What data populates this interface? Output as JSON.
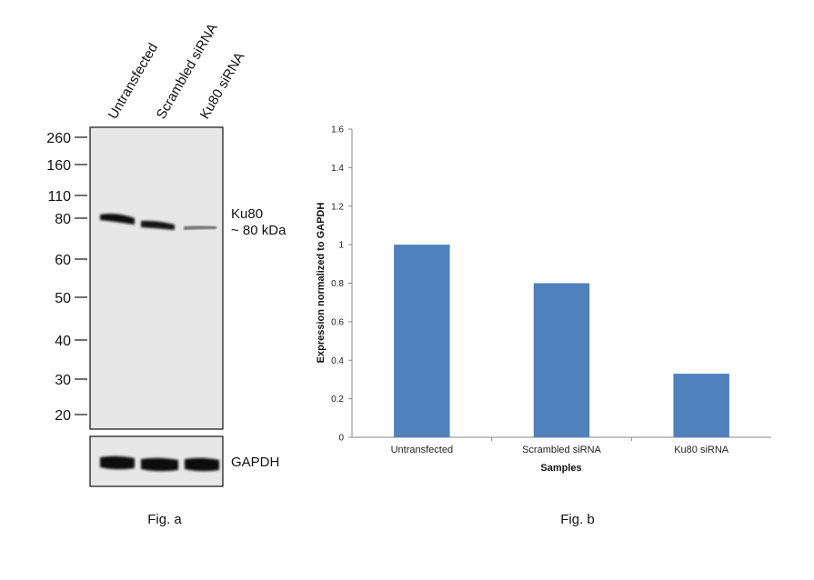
{
  "blot": {
    "lanes": [
      "Untransfected",
      "Scrambled siRNA",
      "Ku80 siRNA"
    ],
    "markers": [
      "260",
      "160",
      "110",
      "80",
      "60",
      "50",
      "40",
      "30",
      "20"
    ],
    "band_label_line1": "Ku80",
    "band_label_line2": "~ 80 kDa",
    "loading_control_label": "GAPDH",
    "caption": "Fig. a"
  },
  "chart_caption": "Fig. b",
  "chart_data": {
    "type": "bar",
    "categories": [
      "Untransfected",
      "Scrambled siRNA",
      "Ku80 siRNA"
    ],
    "values": [
      1.0,
      0.8,
      0.33
    ],
    "title": "",
    "xlabel": "Samples",
    "ylabel": "Expression normalized to GAPDH",
    "ylim": [
      0,
      1.6
    ],
    "yticks": [
      "0",
      "0.2",
      "0.4",
      "0.6",
      "0.8",
      "1",
      "1.2",
      "1.4",
      "1.6"
    ],
    "bar_color": "#4f81bd",
    "grid": false,
    "legend": "none"
  }
}
